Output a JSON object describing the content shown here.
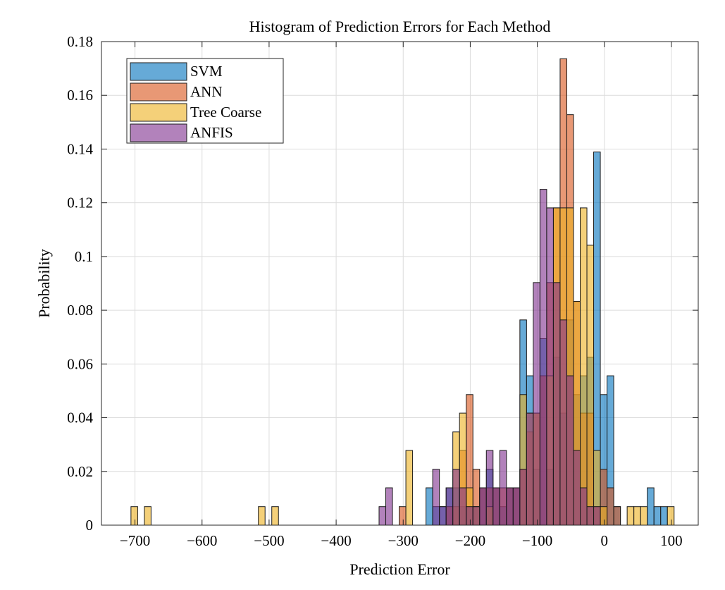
{
  "chart_data": {
    "type": "bar",
    "title": "Histogram of Prediction Errors for Each Method",
    "xlabel": "Prediction Error",
    "ylabel": "Probability",
    "xlim": [
      -750,
      140
    ],
    "ylim": [
      0,
      0.18
    ],
    "xticks": [
      -700,
      -600,
      -500,
      -400,
      -300,
      -200,
      -100,
      0,
      100
    ],
    "xtick_labels": [
      "−700",
      "−600",
      "−500",
      "−400",
      "−300",
      "−200",
      "−100",
      "0",
      "100"
    ],
    "yticks": [
      0,
      0.02,
      0.04,
      0.06,
      0.08,
      0.1,
      0.12,
      0.14,
      0.16,
      0.18
    ],
    "ytick_labels": [
      "0",
      "0.02",
      "0.04",
      "0.06",
      "0.08",
      "0.1",
      "0.12",
      "0.14",
      "0.16",
      "0.18"
    ],
    "grid": true,
    "legend_position": "top-left",
    "bin_width": 10,
    "series": [
      {
        "name": "SVM",
        "color": "#0072BD",
        "bins": [
          {
            "x": -266,
            "y": 0.0139
          },
          {
            "x": -256,
            "y": 0.0069
          },
          {
            "x": -246,
            "y": 0.0069
          },
          {
            "x": -236,
            "y": 0.0139
          },
          {
            "x": -226,
            "y": 0.0139
          },
          {
            "x": -216,
            "y": 0.0069
          },
          {
            "x": -206,
            "y": 0.0069
          },
          {
            "x": -196,
            "y": 0.0069
          },
          {
            "x": -186,
            "y": 0.0139
          },
          {
            "x": -176,
            "y": 0.0208
          },
          {
            "x": -166,
            "y": 0.0139
          },
          {
            "x": -156,
            "y": 0.0069
          },
          {
            "x": -146,
            "y": 0.0139
          },
          {
            "x": -136,
            "y": 0.0139
          },
          {
            "x": -126,
            "y": 0.0764
          },
          {
            "x": -116,
            "y": 0.0556
          },
          {
            "x": -106,
            "y": 0.0208
          },
          {
            "x": -96,
            "y": 0.0694
          },
          {
            "x": -86,
            "y": 0.0208
          },
          {
            "x": -76,
            "y": 0.0625
          },
          {
            "x": -66,
            "y": 0.0417
          },
          {
            "x": -56,
            "y": 0.0764
          },
          {
            "x": -46,
            "y": 0.0486
          },
          {
            "x": -36,
            "y": 0.0556
          },
          {
            "x": -26,
            "y": 0.0625
          },
          {
            "x": -16,
            "y": 0.1389
          },
          {
            "x": -6,
            "y": 0.0486
          },
          {
            "x": 4,
            "y": 0.0556
          },
          {
            "x": 14,
            "y": 0.0069
          },
          {
            "x": 64,
            "y": 0.0139
          },
          {
            "x": 74,
            "y": 0.0069
          },
          {
            "x": 84,
            "y": 0.0069
          }
        ]
      },
      {
        "name": "ANN",
        "color": "#D95319",
        "bins": [
          {
            "x": -306,
            "y": 0.0069
          },
          {
            "x": -236,
            "y": 0.0069
          },
          {
            "x": -226,
            "y": 0.0069
          },
          {
            "x": -216,
            "y": 0.0278
          },
          {
            "x": -206,
            "y": 0.0486
          },
          {
            "x": -196,
            "y": 0.0208
          },
          {
            "x": -186,
            "y": 0.0139
          },
          {
            "x": -176,
            "y": 0.0139
          },
          {
            "x": -166,
            "y": 0.0139
          },
          {
            "x": -156,
            "y": 0.0139
          },
          {
            "x": -146,
            "y": 0.0139
          },
          {
            "x": -136,
            "y": 0.0139
          },
          {
            "x": -126,
            "y": 0.0208
          },
          {
            "x": -116,
            "y": 0.0347
          },
          {
            "x": -106,
            "y": 0.0417
          },
          {
            "x": -96,
            "y": 0.0556
          },
          {
            "x": -86,
            "y": 0.0903
          },
          {
            "x": -76,
            "y": 0.1181
          },
          {
            "x": -66,
            "y": 0.1736
          },
          {
            "x": -56,
            "y": 0.1528
          },
          {
            "x": -46,
            "y": 0.0833
          },
          {
            "x": -36,
            "y": 0.0417
          },
          {
            "x": -26,
            "y": 0.0417
          },
          {
            "x": -16,
            "y": 0.0069
          },
          {
            "x": -6,
            "y": 0.0208
          },
          {
            "x": 4,
            "y": 0.0139
          },
          {
            "x": 14,
            "y": 0.0069
          }
        ]
      },
      {
        "name": "Tree Coarse",
        "color": "#EDB120",
        "bins": [
          {
            "x": -706,
            "y": 0.0069
          },
          {
            "x": -686,
            "y": 0.0069
          },
          {
            "x": -516,
            "y": 0.0069
          },
          {
            "x": -496,
            "y": 0.0069
          },
          {
            "x": -296,
            "y": 0.0278
          },
          {
            "x": -226,
            "y": 0.0347
          },
          {
            "x": -216,
            "y": 0.0417
          },
          {
            "x": -206,
            "y": 0.0139
          },
          {
            "x": -196,
            "y": 0.0069
          },
          {
            "x": -176,
            "y": 0.0069
          },
          {
            "x": -126,
            "y": 0.0486
          },
          {
            "x": -116,
            "y": 0.0417
          },
          {
            "x": -106,
            "y": 0.0417
          },
          {
            "x": -86,
            "y": 0.0556
          },
          {
            "x": -76,
            "y": 0.1181
          },
          {
            "x": -66,
            "y": 0.1181
          },
          {
            "x": -56,
            "y": 0.1181
          },
          {
            "x": -46,
            "y": 0.0833
          },
          {
            "x": -36,
            "y": 0.1181
          },
          {
            "x": -26,
            "y": 0.1042
          },
          {
            "x": -16,
            "y": 0.0278
          },
          {
            "x": -6,
            "y": 0.0069
          },
          {
            "x": 34,
            "y": 0.0069
          },
          {
            "x": 44,
            "y": 0.0069
          },
          {
            "x": 54,
            "y": 0.0069
          },
          {
            "x": 94,
            "y": 0.0069
          }
        ]
      },
      {
        "name": "ANFIS",
        "color": "#7E2F8E",
        "bins": [
          {
            "x": -336,
            "y": 0.0069
          },
          {
            "x": -326,
            "y": 0.0139
          },
          {
            "x": -256,
            "y": 0.0208
          },
          {
            "x": -246,
            "y": 0.0069
          },
          {
            "x": -236,
            "y": 0.0139
          },
          {
            "x": -226,
            "y": 0.0208
          },
          {
            "x": -216,
            "y": 0.0139
          },
          {
            "x": -206,
            "y": 0.0069
          },
          {
            "x": -196,
            "y": 0.0069
          },
          {
            "x": -186,
            "y": 0.0139
          },
          {
            "x": -176,
            "y": 0.0278
          },
          {
            "x": -166,
            "y": 0.0139
          },
          {
            "x": -156,
            "y": 0.0278
          },
          {
            "x": -146,
            "y": 0.0139
          },
          {
            "x": -136,
            "y": 0.0139
          },
          {
            "x": -126,
            "y": 0.0208
          },
          {
            "x": -116,
            "y": 0.0417
          },
          {
            "x": -106,
            "y": 0.0903
          },
          {
            "x": -96,
            "y": 0.125
          },
          {
            "x": -86,
            "y": 0.1181
          },
          {
            "x": -76,
            "y": 0.0903
          },
          {
            "x": -66,
            "y": 0.0764
          },
          {
            "x": -56,
            "y": 0.0556
          },
          {
            "x": -46,
            "y": 0.0278
          },
          {
            "x": -36,
            "y": 0.0139
          },
          {
            "x": -26,
            "y": 0.0069
          },
          {
            "x": -16,
            "y": 0.0069
          }
        ]
      }
    ]
  }
}
